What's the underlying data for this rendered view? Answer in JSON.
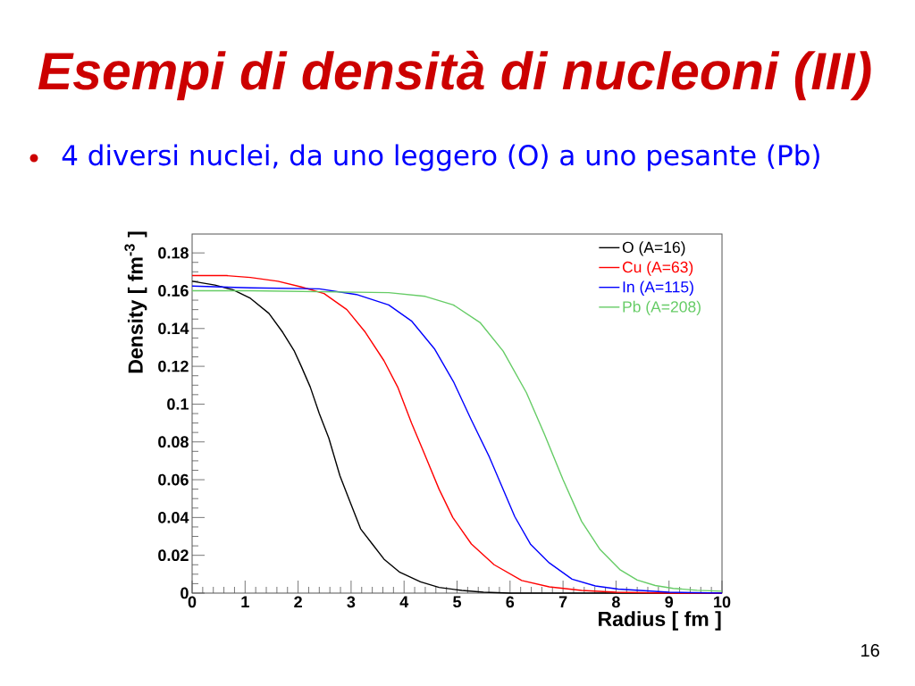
{
  "chart_data": {
    "type": "line",
    "title": "Esempi di densità di nucleoni (III)",
    "subtitle": "4 diversi nuclei, da uno leggero (O) a uno pesante (Pb)",
    "xlabel": "Radius [ fm ]",
    "ylabel": "Density [ fm$^{-3}$ ]",
    "annotations": [
      "16"
    ],
    "xlim": [
      0,
      10
    ],
    "ylim": [
      0,
      0.19
    ],
    "xticks": [
      0,
      1,
      2,
      3,
      4,
      5,
      6,
      7,
      8,
      9,
      10
    ],
    "yticks": [
      0,
      0.02,
      0.04,
      0.06,
      0.08,
      0.1,
      0.12,
      0.14,
      0.16,
      0.18
    ],
    "legend": "top right",
    "line_style": "solid",
    "series": [
      {
        "name": "O (A=16)",
        "color": "#000000",
        "x": [
          0,
          0.43,
          0.77,
          1.1,
          1.45,
          1.71,
          1.93,
          2.06,
          2.23,
          2.4,
          2.58,
          2.79,
          2.97,
          3.18,
          3.4,
          3.62,
          3.92,
          4.31,
          4.66,
          5.09,
          5.5,
          6,
          7,
          8,
          9,
          10
        ],
        "values": [
          0.165,
          0.163,
          0.1605,
          0.156,
          0.148,
          0.138,
          0.128,
          0.12,
          0.109,
          0.095,
          0.082,
          0.062,
          0.049,
          0.034,
          0.026,
          0.018,
          0.011,
          0.006,
          0.003,
          0.0014,
          0.0005,
          0,
          0,
          0,
          0,
          0
        ]
      },
      {
        "name": "Cu (A=63)",
        "color": "#ff0000",
        "x": [
          0,
          0.65,
          1.1,
          1.62,
          2.06,
          2.49,
          2.92,
          3.27,
          3.62,
          3.88,
          4.14,
          4.41,
          4.66,
          4.92,
          5.27,
          5.7,
          6.22,
          6.74,
          7.35,
          8,
          9,
          10
        ],
        "values": [
          0.168,
          0.168,
          0.167,
          0.165,
          0.162,
          0.1585,
          0.15,
          0.138,
          0.123,
          0.109,
          0.09,
          0.072,
          0.055,
          0.04,
          0.026,
          0.015,
          0.0067,
          0.0033,
          0.0014,
          0.0005,
          0,
          0
        ]
      },
      {
        "name": "In (A=115)",
        "color": "#0000ff",
        "x": [
          0,
          1.1,
          2.4,
          3.1,
          3.71,
          4.14,
          4.58,
          4.93,
          5.27,
          5.61,
          6.09,
          6.39,
          6.74,
          7.17,
          7.61,
          8.04,
          9,
          10
        ],
        "values": [
          0.1625,
          0.1615,
          0.161,
          0.158,
          0.1525,
          0.144,
          0.129,
          0.112,
          0.0916,
          0.072,
          0.0404,
          0.0257,
          0.016,
          0.0074,
          0.0038,
          0.0021,
          0.0005,
          0
        ]
      },
      {
        "name": "Pb (A=208)",
        "color": "#66cc66",
        "x": [
          0,
          1.1,
          3.71,
          4.4,
          4.93,
          5.44,
          5.87,
          6.31,
          6.65,
          7.0,
          7.35,
          7.7,
          8.07,
          8.4,
          8.74,
          9.08,
          9.53,
          10
        ],
        "values": [
          0.16,
          0.16,
          0.159,
          0.157,
          0.1525,
          0.143,
          0.128,
          0.106,
          0.084,
          0.06,
          0.038,
          0.023,
          0.0125,
          0.0069,
          0.004,
          0.0025,
          0.0015,
          0.001
        ]
      }
    ]
  }
}
